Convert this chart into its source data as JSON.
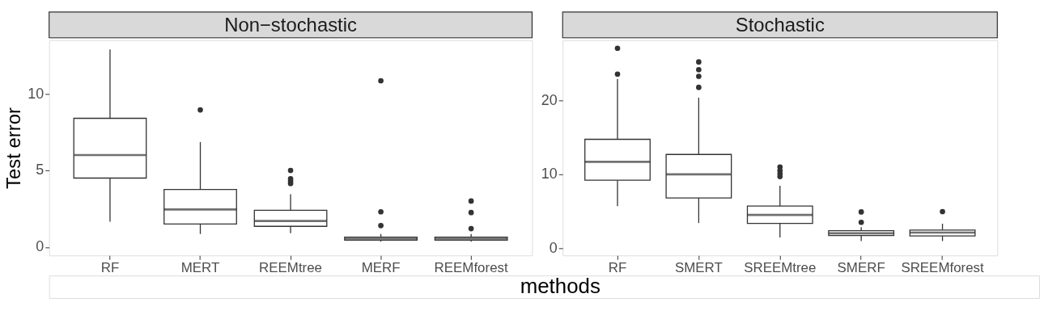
{
  "chart_data": [
    {
      "type": "box",
      "title": "Non−stochastic",
      "ylabel": "Test error",
      "xlabel": "methods",
      "categories": [
        "RF",
        "MERT",
        "REEMtree",
        "MERF",
        "REEMforest"
      ],
      "ylim": [
        -0.55,
        13.5
      ],
      "yticks": [
        0,
        5,
        10
      ],
      "grid": false,
      "series": [
        {
          "color": "#333333",
          "boxes": [
            {
              "low": 1.65,
              "q1": 4.5,
              "median": 6.0,
              "q3": 8.4,
              "high": 12.9
            },
            {
              "low": 0.85,
              "q1": 1.5,
              "median": 2.45,
              "q3": 3.75,
              "high": 6.85,
              "outliers": [
                8.95
              ]
            },
            {
              "low": 0.9,
              "q1": 1.35,
              "median": 1.7,
              "q3": 2.4,
              "high": 3.45,
              "outliers": [
                5.0,
                4.45,
                4.3,
                4.15
              ]
            },
            {
              "low": 0.35,
              "q1": 0.45,
              "median": 0.55,
              "q3": 0.65,
              "high": 0.85,
              "outliers": [
                10.85,
                2.3,
                1.4
              ]
            },
            {
              "low": 0.35,
              "q1": 0.45,
              "median": 0.55,
              "q3": 0.65,
              "high": 0.85,
              "outliers": [
                3.0,
                2.25,
                1.2
              ]
            }
          ]
        }
      ]
    },
    {
      "type": "box",
      "title": "Stochastic",
      "categories": [
        "RF",
        "SMERT",
        "SREEMtree",
        "SMERF",
        "SREEMforest"
      ],
      "ylim": [
        -1.0,
        28.2
      ],
      "yticks": [
        0,
        10,
        20
      ],
      "grid": false,
      "series": [
        {
          "color": "#333333",
          "boxes": [
            {
              "low": 5.7,
              "q1": 9.2,
              "median": 11.7,
              "q3": 14.75,
              "high": 22.95,
              "outliers": [
                27.1,
                23.6
              ]
            },
            {
              "low": 3.4,
              "q1": 6.8,
              "median": 10.0,
              "q3": 12.7,
              "high": 20.4,
              "outliers": [
                25.25,
                24.2,
                23.3,
                21.8
              ]
            },
            {
              "low": 1.45,
              "q1": 3.35,
              "median": 4.5,
              "q3": 5.7,
              "high": 8.45,
              "outliers": [
                11.0,
                10.5,
                10.1,
                9.7
              ]
            },
            {
              "low": 0.95,
              "q1": 1.7,
              "median": 2.0,
              "q3": 2.35,
              "high": 2.85,
              "outliers": [
                4.9,
                3.5
              ]
            },
            {
              "low": 0.95,
              "q1": 1.65,
              "median": 2.1,
              "q3": 2.45,
              "high": 3.3,
              "outliers": [
                4.95
              ]
            }
          ]
        }
      ]
    }
  ]
}
